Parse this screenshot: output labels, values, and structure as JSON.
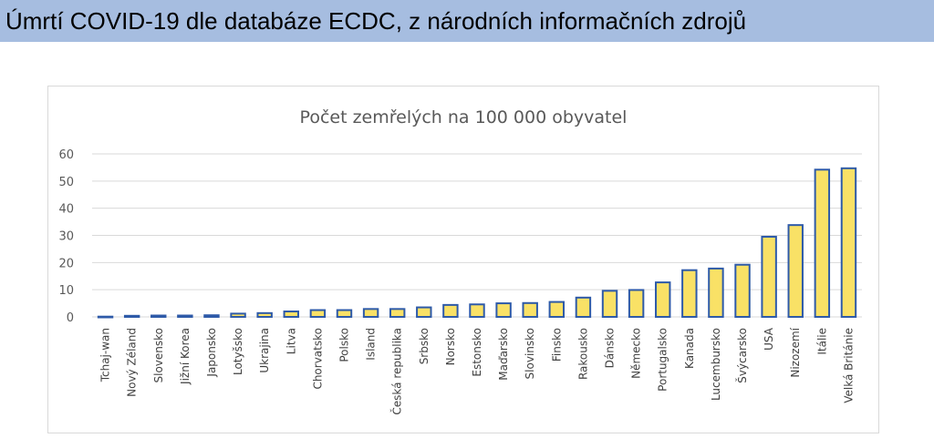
{
  "header": {
    "title": "Úmrtí COVID-19 dle databáze ECDC, z národních informačních zdrojů"
  },
  "colors": {
    "header_background": "#a6bde0",
    "bar_fill": "#f9e166",
    "bar_stroke": "#2e5aa8",
    "gridline": "#d9d9d9",
    "axis_text": "#595959"
  },
  "chart_data": {
    "type": "bar",
    "title": "Počet zemřelých na 100 000 obyvatel",
    "xlabel": "",
    "ylabel": "",
    "ylim": [
      0,
      60
    ],
    "yticks": [
      0,
      10,
      20,
      30,
      40,
      50,
      60
    ],
    "grid": true,
    "legend": "none",
    "categories": [
      "Tchaj-wan",
      "Nový Zéland",
      "Slovensko",
      "Jižní Korea",
      "Japonsko",
      "Lotyšsko",
      "Ukrajina",
      "Litva",
      "Chorvatsko",
      "Polsko",
      "Island",
      "Česká republika",
      "Srbsko",
      "Norsko",
      "Estonsko",
      "Maďarsko",
      "Slovinsko",
      "Finsko",
      "Rakousko",
      "Dánsko",
      "Německo",
      "Portugalsko",
      "Kanada",
      "Lucembursko",
      "Švýcarsko",
      "USA",
      "Nizozemí",
      "Itálie",
      "Velká Británie"
    ],
    "values": [
      0.1,
      0.4,
      0.5,
      0.5,
      0.6,
      1.2,
      1.4,
      2.0,
      2.5,
      2.5,
      2.9,
      2.9,
      3.5,
      4.4,
      4.6,
      5.0,
      5.1,
      5.5,
      7.1,
      9.6,
      9.9,
      12.7,
      17.2,
      17.8,
      19.2,
      29.5,
      33.8,
      54.2,
      54.7
    ]
  }
}
